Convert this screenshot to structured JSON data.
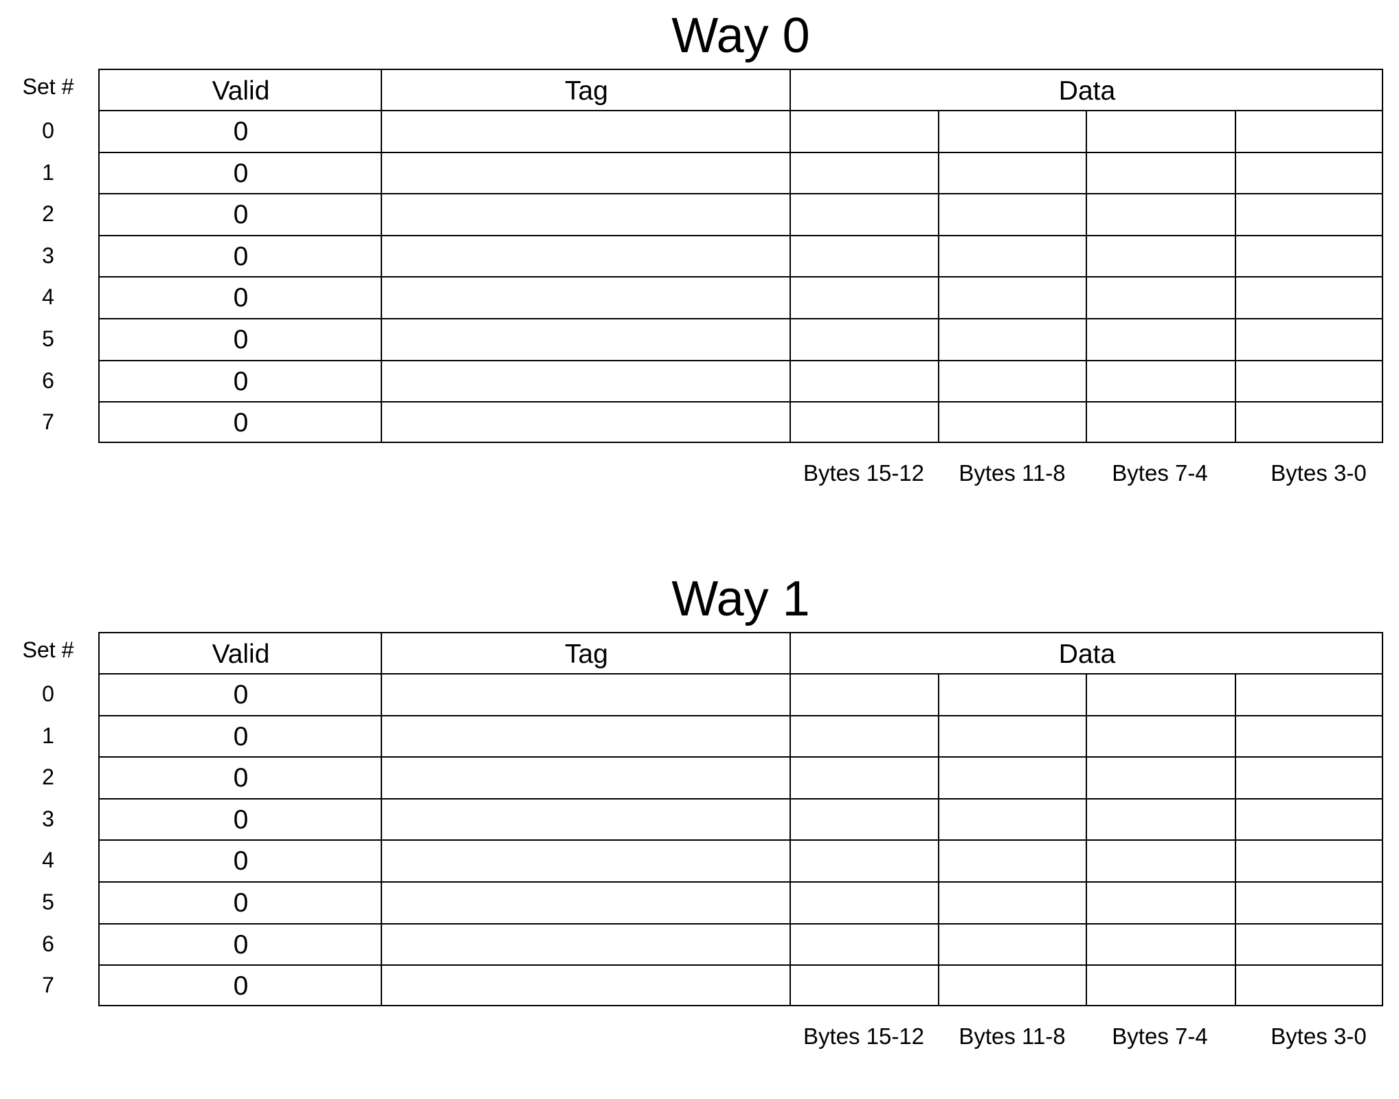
{
  "ways": [
    {
      "title": "Way 0",
      "set_header": "Set #",
      "columns": {
        "valid": "Valid",
        "tag": "Tag",
        "data": "Data"
      },
      "rows": [
        {
          "set": "0",
          "valid": "0"
        },
        {
          "set": "1",
          "valid": "0"
        },
        {
          "set": "2",
          "valid": "0"
        },
        {
          "set": "3",
          "valid": "0"
        },
        {
          "set": "4",
          "valid": "0"
        },
        {
          "set": "5",
          "valid": "0"
        },
        {
          "set": "6",
          "valid": "0"
        },
        {
          "set": "7",
          "valid": "0"
        }
      ],
      "byte_labels": [
        "Bytes 15-12",
        "Bytes 11-8",
        "Bytes 7-4",
        "Bytes 3-0"
      ]
    },
    {
      "title": "Way 1",
      "set_header": "Set #",
      "columns": {
        "valid": "Valid",
        "tag": "Tag",
        "data": "Data"
      },
      "rows": [
        {
          "set": "0",
          "valid": "0"
        },
        {
          "set": "1",
          "valid": "0"
        },
        {
          "set": "2",
          "valid": "0"
        },
        {
          "set": "3",
          "valid": "0"
        },
        {
          "set": "4",
          "valid": "0"
        },
        {
          "set": "5",
          "valid": "0"
        },
        {
          "set": "6",
          "valid": "0"
        },
        {
          "set": "7",
          "valid": "0"
        }
      ],
      "byte_labels": [
        "Bytes 15-12",
        "Bytes 11-8",
        "Bytes 7-4",
        "Bytes 3-0"
      ]
    }
  ]
}
